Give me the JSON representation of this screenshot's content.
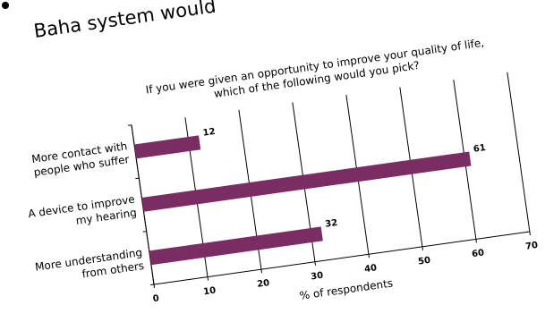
{
  "heading": "Baha system would",
  "chart_data": {
    "type": "bar",
    "orientation": "horizontal",
    "title": [
      "If you were given an opportunity to improve your quality of life,",
      "which of the following would you pick?"
    ],
    "categories": [
      [
        "More contact with",
        "people who suffer"
      ],
      [
        "A device to improve",
        "my hearing"
      ],
      [
        "More understanding",
        "from others"
      ]
    ],
    "values": [
      12,
      61,
      32
    ],
    "color": "#7b2d63",
    "xlabel": "% of respondents",
    "xlim": [
      0,
      70
    ],
    "xticks": [
      0,
      10,
      20,
      30,
      40,
      50,
      60,
      70
    ],
    "grid": true
  }
}
